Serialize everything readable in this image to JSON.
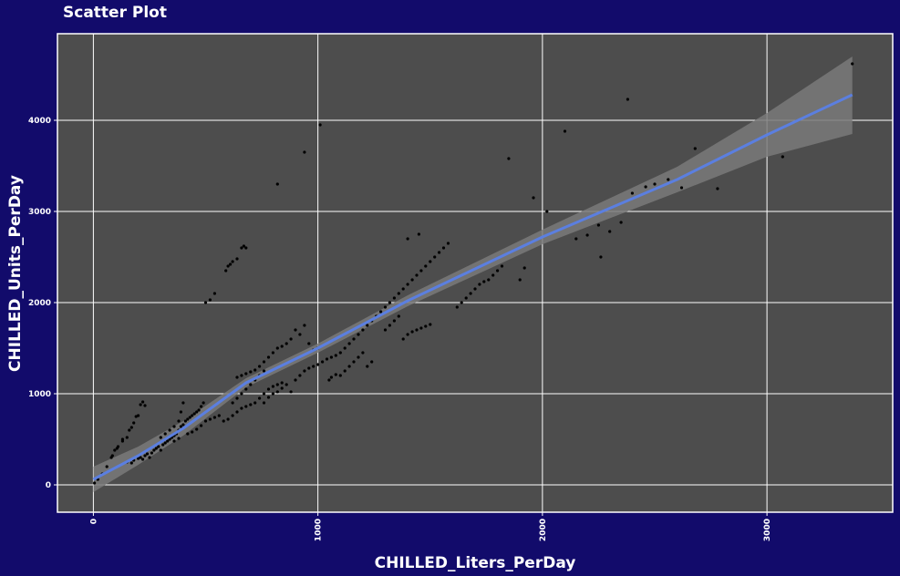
{
  "chart_data": {
    "type": "scatter",
    "title": "Scatter Plot",
    "xlabel": "CHILLED_Liters_PerDay",
    "ylabel": "CHILLED_Units_PerDay",
    "xlim": [
      -160,
      3560
    ],
    "ylim": [
      -300,
      4950
    ],
    "x_ticks": [
      0,
      1000,
      2000,
      3000
    ],
    "y_ticks": [
      0,
      1000,
      2000,
      3000,
      4000
    ],
    "x_tick_labels": [
      "0",
      "1000",
      "2000",
      "3000"
    ],
    "y_tick_labels": [
      "0",
      "1000",
      "2000",
      "3000",
      "4000"
    ],
    "grid": true,
    "colors": {
      "background": "#120b6b",
      "panel": "#4d4d4d",
      "grid": "#ffffff",
      "points": "#000000",
      "trend_line": "#5b7fe0",
      "confidence_band": "#7a7a7a"
    },
    "trend_line": {
      "x": [
        0,
        200,
        400,
        680,
        1000,
        1400,
        2000,
        2600,
        3000,
        3380
      ],
      "y": [
        60,
        320,
        620,
        1120,
        1500,
        2020,
        2720,
        3350,
        3840,
        4280
      ]
    },
    "confidence_band": {
      "x": [
        0,
        200,
        400,
        680,
        1000,
        1400,
        2000,
        2600,
        3000,
        3380
      ],
      "upper": [
        200,
        420,
        700,
        1170,
        1550,
        2080,
        2800,
        3490,
        4080,
        4700
      ],
      "lower": [
        -80,
        220,
        540,
        1070,
        1450,
        1960,
        2640,
        3210,
        3600,
        3850
      ]
    },
    "points": [
      [
        5,
        20
      ],
      [
        20,
        60
      ],
      [
        40,
        120
      ],
      [
        60,
        200
      ],
      [
        80,
        300
      ],
      [
        85,
        320
      ],
      [
        95,
        380
      ],
      [
        105,
        400
      ],
      [
        110,
        420
      ],
      [
        130,
        480
      ],
      [
        130,
        500
      ],
      [
        150,
        520
      ],
      [
        160,
        600
      ],
      [
        170,
        630
      ],
      [
        180,
        680
      ],
      [
        190,
        750
      ],
      [
        200,
        760
      ],
      [
        210,
        880
      ],
      [
        220,
        910
      ],
      [
        230,
        870
      ],
      [
        150,
        250
      ],
      [
        170,
        240
      ],
      [
        180,
        270
      ],
      [
        200,
        290
      ],
      [
        210,
        300
      ],
      [
        220,
        280
      ],
      [
        230,
        320
      ],
      [
        240,
        340
      ],
      [
        250,
        300
      ],
      [
        260,
        350
      ],
      [
        270,
        380
      ],
      [
        280,
        400
      ],
      [
        290,
        420
      ],
      [
        300,
        380
      ],
      [
        310,
        440
      ],
      [
        320,
        460
      ],
      [
        330,
        480
      ],
      [
        340,
        500
      ],
      [
        350,
        520
      ],
      [
        360,
        540
      ],
      [
        370,
        560
      ],
      [
        380,
        600
      ],
      [
        390,
        640
      ],
      [
        400,
        660
      ],
      [
        410,
        700
      ],
      [
        420,
        720
      ],
      [
        430,
        740
      ],
      [
        440,
        760
      ],
      [
        450,
        780
      ],
      [
        460,
        800
      ],
      [
        470,
        820
      ],
      [
        480,
        860
      ],
      [
        490,
        900
      ],
      [
        300,
        520
      ],
      [
        320,
        560
      ],
      [
        340,
        600
      ],
      [
        360,
        640
      ],
      [
        380,
        700
      ],
      [
        390,
        800
      ],
      [
        400,
        900
      ],
      [
        360,
        480
      ],
      [
        380,
        510
      ],
      [
        420,
        560
      ],
      [
        440,
        580
      ],
      [
        460,
        610
      ],
      [
        480,
        650
      ],
      [
        500,
        700
      ],
      [
        520,
        720
      ],
      [
        540,
        740
      ],
      [
        560,
        760
      ],
      [
        580,
        700
      ],
      [
        600,
        720
      ],
      [
        620,
        760
      ],
      [
        640,
        800
      ],
      [
        660,
        840
      ],
      [
        680,
        860
      ],
      [
        700,
        880
      ],
      [
        720,
        900
      ],
      [
        740,
        950
      ],
      [
        760,
        1000
      ],
      [
        780,
        1050
      ],
      [
        800,
        1080
      ],
      [
        820,
        1100
      ],
      [
        840,
        1120
      ],
      [
        620,
        900
      ],
      [
        640,
        950
      ],
      [
        660,
        1000
      ],
      [
        680,
        1050
      ],
      [
        700,
        1100
      ],
      [
        720,
        1150
      ],
      [
        740,
        1200
      ],
      [
        760,
        1250
      ],
      [
        640,
        1180
      ],
      [
        660,
        1200
      ],
      [
        680,
        1220
      ],
      [
        700,
        1240
      ],
      [
        720,
        1260
      ],
      [
        740,
        1300
      ],
      [
        760,
        1350
      ],
      [
        780,
        1400
      ],
      [
        800,
        1450
      ],
      [
        820,
        1500
      ],
      [
        840,
        1520
      ],
      [
        860,
        1550
      ],
      [
        880,
        1600
      ],
      [
        900,
        1700
      ],
      [
        920,
        1650
      ],
      [
        940,
        1750
      ],
      [
        960,
        1550
      ],
      [
        980,
        1480
      ],
      [
        1000,
        1500
      ],
      [
        760,
        900
      ],
      [
        780,
        960
      ],
      [
        800,
        1000
      ],
      [
        820,
        1020
      ],
      [
        840,
        1060
      ],
      [
        860,
        1100
      ],
      [
        880,
        1020
      ],
      [
        900,
        1150
      ],
      [
        920,
        1200
      ],
      [
        940,
        1250
      ],
      [
        960,
        1280
      ],
      [
        980,
        1300
      ],
      [
        1000,
        1320
      ],
      [
        1020,
        1350
      ],
      [
        1040,
        1380
      ],
      [
        1060,
        1400
      ],
      [
        1080,
        1420
      ],
      [
        1100,
        1450
      ],
      [
        1120,
        1500
      ],
      [
        1140,
        1550
      ],
      [
        1160,
        1600
      ],
      [
        1180,
        1650
      ],
      [
        1200,
        1700
      ],
      [
        1220,
        1750
      ],
      [
        1240,
        1800
      ],
      [
        1260,
        1850
      ],
      [
        1280,
        1900
      ],
      [
        1300,
        1950
      ],
      [
        1320,
        2000
      ],
      [
        1340,
        2050
      ],
      [
        1360,
        2100
      ],
      [
        1380,
        2150
      ],
      [
        1400,
        2200
      ],
      [
        1420,
        2250
      ],
      [
        1440,
        2300
      ],
      [
        1460,
        2350
      ],
      [
        1480,
        2400
      ],
      [
        1500,
        2450
      ],
      [
        1520,
        2500
      ],
      [
        1540,
        2550
      ],
      [
        1560,
        2600
      ],
      [
        1580,
        2650
      ],
      [
        1450,
        2750
      ],
      [
        1400,
        2700
      ],
      [
        1300,
        1700
      ],
      [
        1320,
        1750
      ],
      [
        1340,
        1800
      ],
      [
        1360,
        1850
      ],
      [
        1380,
        1600
      ],
      [
        1400,
        1650
      ],
      [
        1420,
        1680
      ],
      [
        1440,
        1700
      ],
      [
        1460,
        1720
      ],
      [
        1480,
        1740
      ],
      [
        1500,
        1760
      ],
      [
        1100,
        1200
      ],
      [
        1120,
        1250
      ],
      [
        1140,
        1300
      ],
      [
        1160,
        1350
      ],
      [
        1180,
        1400
      ],
      [
        1200,
        1450
      ],
      [
        1220,
        1300
      ],
      [
        1240,
        1350
      ],
      [
        1050,
        1150
      ],
      [
        1060,
        1180
      ],
      [
        1080,
        1210
      ],
      [
        500,
        2000
      ],
      [
        520,
        2030
      ],
      [
        540,
        2100
      ],
      [
        590,
        2350
      ],
      [
        600,
        2400
      ],
      [
        610,
        2420
      ],
      [
        620,
        2450
      ],
      [
        640,
        2480
      ],
      [
        660,
        2600
      ],
      [
        670,
        2620
      ],
      [
        680,
        2600
      ],
      [
        820,
        3300
      ],
      [
        940,
        3650
      ],
      [
        1010,
        3950
      ],
      [
        1620,
        1950
      ],
      [
        1640,
        2000
      ],
      [
        1660,
        2050
      ],
      [
        1680,
        2100
      ],
      [
        1700,
        2150
      ],
      [
        1720,
        2200
      ],
      [
        1740,
        2230
      ],
      [
        1760,
        2250
      ],
      [
        1780,
        2300
      ],
      [
        1800,
        2350
      ],
      [
        1820,
        2400
      ],
      [
        1900,
        2250
      ],
      [
        1920,
        2380
      ],
      [
        1960,
        3150
      ],
      [
        2020,
        3000
      ],
      [
        1850,
        3580
      ],
      [
        2100,
        3880
      ],
      [
        2150,
        2700
      ],
      [
        2200,
        2740
      ],
      [
        2250,
        2850
      ],
      [
        2260,
        2500
      ],
      [
        2300,
        2780
      ],
      [
        2350,
        2880
      ],
      [
        2400,
        3200
      ],
      [
        2460,
        3270
      ],
      [
        2500,
        3300
      ],
      [
        2560,
        3350
      ],
      [
        2620,
        3260
      ],
      [
        2680,
        3690
      ],
      [
        2780,
        3250
      ],
      [
        2380,
        4230
      ],
      [
        3070,
        3600
      ],
      [
        3380,
        4620
      ]
    ]
  }
}
